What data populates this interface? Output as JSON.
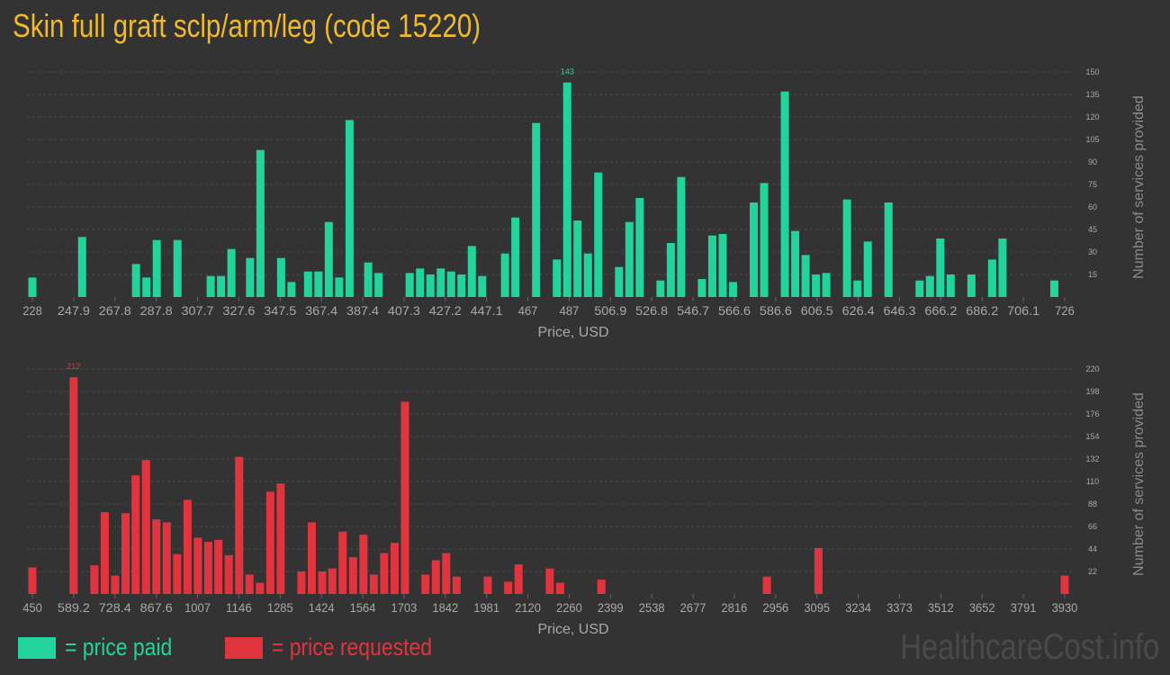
{
  "title": "Skin full graft sclp/arm/leg (code 15220)",
  "colors": {
    "paid": "#22d39b",
    "requested": "#e0353f",
    "title": "#f0b92f",
    "axis_text": "#a9a9a9",
    "grid": "#4a4a4a"
  },
  "legend": {
    "paid": "= price paid",
    "requested": "= price requested"
  },
  "watermark": "HealthcareCost.info",
  "chart_data": [
    {
      "type": "bar",
      "series_name": "price paid",
      "xlabel": "Price, USD",
      "ylabel": "Number of services provided",
      "ylim": [
        0,
        150
      ],
      "yticks": [
        15,
        30,
        45,
        60,
        75,
        90,
        105,
        120,
        135,
        150
      ],
      "x_range": [
        228,
        726
      ],
      "xtick_labels": [
        "228",
        "247.9",
        "267.8",
        "287.8",
        "307.7",
        "327.6",
        "347.5",
        "367.4",
        "387.4",
        "407.3",
        "427.2",
        "447.1",
        "467",
        "487",
        "506.9",
        "526.8",
        "546.7",
        "566.6",
        "586.6",
        "606.5",
        "626.4",
        "646.3",
        "666.2",
        "686.2",
        "706.1",
        "726"
      ],
      "max_label": "143",
      "bars": [
        [
          228,
          13
        ],
        [
          252,
          40
        ],
        [
          278,
          22
        ],
        [
          283,
          13
        ],
        [
          288,
          38
        ],
        [
          298,
          38
        ],
        [
          314,
          14
        ],
        [
          319,
          14
        ],
        [
          324,
          32
        ],
        [
          333,
          26
        ],
        [
          338,
          98
        ],
        [
          348,
          26
        ],
        [
          353,
          10
        ],
        [
          361,
          17
        ],
        [
          366,
          17
        ],
        [
          371,
          50
        ],
        [
          376,
          13
        ],
        [
          381,
          118
        ],
        [
          390,
          23
        ],
        [
          395,
          16
        ],
        [
          410,
          16
        ],
        [
          415,
          19
        ],
        [
          420,
          15
        ],
        [
          425,
          19
        ],
        [
          430,
          17
        ],
        [
          435,
          15
        ],
        [
          440,
          34
        ],
        [
          445,
          14
        ],
        [
          456,
          29
        ],
        [
          461,
          53
        ],
        [
          471,
          116
        ],
        [
          481,
          25
        ],
        [
          486,
          143
        ],
        [
          491,
          51
        ],
        [
          496,
          29
        ],
        [
          501,
          83
        ],
        [
          511,
          20
        ],
        [
          516,
          50
        ],
        [
          521,
          66
        ],
        [
          531,
          11
        ],
        [
          536,
          36
        ],
        [
          541,
          80
        ],
        [
          551,
          12
        ],
        [
          556,
          41
        ],
        [
          561,
          42
        ],
        [
          566,
          10
        ],
        [
          576,
          63
        ],
        [
          581,
          76
        ],
        [
          591,
          137
        ],
        [
          596,
          44
        ],
        [
          601,
          28
        ],
        [
          606,
          15
        ],
        [
          611,
          16
        ],
        [
          621,
          65
        ],
        [
          626,
          11
        ],
        [
          631,
          37
        ],
        [
          641,
          63
        ],
        [
          656,
          11
        ],
        [
          661,
          14
        ],
        [
          666,
          39
        ],
        [
          671,
          15
        ],
        [
          681,
          15
        ],
        [
          691,
          25
        ],
        [
          696,
          39
        ],
        [
          721,
          11
        ]
      ]
    },
    {
      "type": "bar",
      "series_name": "price requested",
      "xlabel": "Price, USD",
      "ylabel": "Number of services provided",
      "ylim": [
        0,
        220
      ],
      "yticks": [
        22,
        44,
        66,
        88,
        110,
        132,
        154,
        176,
        198,
        220
      ],
      "x_range": [
        450,
        3930
      ],
      "xtick_labels": [
        "450",
        "589.2",
        "728.4",
        "867.6",
        "1007",
        "1146",
        "1285",
        "1424",
        "1564",
        "1703",
        "1842",
        "1981",
        "2120",
        "2260",
        "2399",
        "2538",
        "2677",
        "2816",
        "2956",
        "3095",
        "3234",
        "3373",
        "3512",
        "3652",
        "3791",
        "3930"
      ],
      "max_label": "212",
      "bars": [
        [
          450,
          26
        ],
        [
          589,
          212
        ],
        [
          659,
          28
        ],
        [
          694,
          80
        ],
        [
          729,
          18
        ],
        [
          764,
          79
        ],
        [
          798,
          116
        ],
        [
          833,
          131
        ],
        [
          868,
          73
        ],
        [
          903,
          70
        ],
        [
          938,
          39
        ],
        [
          973,
          92
        ],
        [
          1008,
          55
        ],
        [
          1043,
          51
        ],
        [
          1077,
          53
        ],
        [
          1112,
          38
        ],
        [
          1147,
          134
        ],
        [
          1182,
          19
        ],
        [
          1217,
          11
        ],
        [
          1252,
          100
        ],
        [
          1287,
          108
        ],
        [
          1357,
          22
        ],
        [
          1392,
          70
        ],
        [
          1427,
          22
        ],
        [
          1461,
          25
        ],
        [
          1496,
          61
        ],
        [
          1531,
          36
        ],
        [
          1566,
          58
        ],
        [
          1601,
          19
        ],
        [
          1636,
          40
        ],
        [
          1671,
          50
        ],
        [
          1706,
          188
        ],
        [
          1775,
          19
        ],
        [
          1810,
          33
        ],
        [
          1845,
          40
        ],
        [
          1880,
          17
        ],
        [
          1985,
          17
        ],
        [
          2054,
          12
        ],
        [
          2089,
          29
        ],
        [
          2194,
          25
        ],
        [
          2229,
          11
        ],
        [
          2368,
          14
        ],
        [
          2926,
          17
        ],
        [
          3100,
          45
        ],
        [
          3930,
          18
        ]
      ]
    }
  ]
}
